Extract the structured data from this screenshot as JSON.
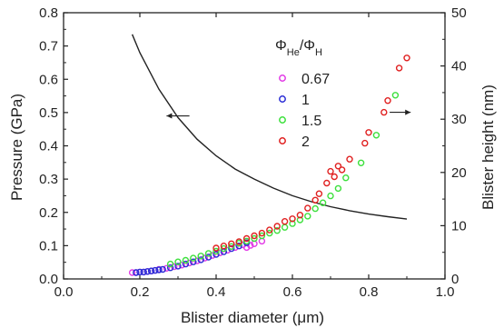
{
  "chart_data": {
    "type": "scatter",
    "xlabel": "Blister diameter (μm)",
    "ylabel": "Pressure (GPa)",
    "y2label": "Blister height (nm)",
    "xlim": [
      0.0,
      1.0
    ],
    "ylim": [
      0.0,
      0.8
    ],
    "y2lim": [
      0,
      50
    ],
    "xticks": [
      "0.0",
      "0.2",
      "0.4",
      "0.6",
      "0.8",
      "1.0"
    ],
    "yticks": [
      "0.0",
      "0.1",
      "0.2",
      "0.3",
      "0.4",
      "0.5",
      "0.6",
      "0.7",
      "0.8"
    ],
    "y2ticks": [
      "0",
      "10",
      "20",
      "30",
      "40",
      "50"
    ],
    "grid": false,
    "legend": {
      "title_main": "Φ",
      "title_sub1": "He",
      "title_sep": "/Φ",
      "title_sub2": "H",
      "placement": "top-right",
      "entries": [
        "0.67",
        "1",
        "1.5",
        "2"
      ]
    },
    "pressure_curve": {
      "axis": "left",
      "x": [
        0.18,
        0.2,
        0.25,
        0.3,
        0.35,
        0.4,
        0.45,
        0.5,
        0.55,
        0.6,
        0.65,
        0.7,
        0.75,
        0.8,
        0.85,
        0.9
      ],
      "y": [
        0.735,
        0.68,
        0.57,
        0.485,
        0.42,
        0.37,
        0.33,
        0.3,
        0.273,
        0.25,
        0.232,
        0.217,
        0.205,
        0.195,
        0.187,
        0.18
      ]
    },
    "series": [
      {
        "name": "0.67",
        "color": "#e23be6",
        "axis": "right",
        "x": [
          0.18,
          0.19,
          0.2,
          0.21,
          0.22,
          0.23,
          0.24,
          0.25,
          0.27,
          0.29,
          0.31,
          0.33,
          0.35,
          0.37,
          0.39,
          0.41,
          0.43,
          0.45,
          0.47,
          0.48,
          0.49,
          0.5,
          0.52
        ],
        "y": [
          1.2,
          1.2,
          1.3,
          1.3,
          1.4,
          1.5,
          1.6,
          1.8,
          2.0,
          2.3,
          2.6,
          3.0,
          3.4,
          3.9,
          4.4,
          4.9,
          5.4,
          5.9,
          6.4,
          5.9,
          6.3,
          6.6,
          7.1
        ]
      },
      {
        "name": "1",
        "color": "#2b2ed6",
        "axis": "right",
        "x": [
          0.19,
          0.2,
          0.21,
          0.22,
          0.23,
          0.24,
          0.25,
          0.26,
          0.28,
          0.3,
          0.32,
          0.34,
          0.36,
          0.38,
          0.4,
          0.42,
          0.44,
          0.46,
          0.48
        ],
        "y": [
          1.2,
          1.3,
          1.3,
          1.4,
          1.5,
          1.6,
          1.7,
          1.8,
          2.1,
          2.4,
          2.8,
          3.2,
          3.6,
          4.1,
          4.6,
          5.1,
          5.7,
          6.2,
          6.8
        ]
      },
      {
        "name": "1.5",
        "color": "#3ce03c",
        "axis": "right",
        "x": [
          0.28,
          0.3,
          0.32,
          0.34,
          0.36,
          0.38,
          0.4,
          0.42,
          0.44,
          0.46,
          0.48,
          0.5,
          0.52,
          0.54,
          0.56,
          0.58,
          0.6,
          0.62,
          0.64,
          0.66,
          0.68,
          0.7,
          0.72,
          0.74,
          0.78,
          0.82,
          0.87
        ],
        "y": [
          2.8,
          3.2,
          3.5,
          3.9,
          4.3,
          4.8,
          5.2,
          5.7,
          6.1,
          6.7,
          7.1,
          7.6,
          8.1,
          8.6,
          9.1,
          9.7,
          10.4,
          11.1,
          11.8,
          13.2,
          14.3,
          15.6,
          17.0,
          19.0,
          21.8,
          27.0,
          34.5
        ]
      },
      {
        "name": "2",
        "color": "#e02020",
        "axis": "right",
        "x": [
          0.4,
          0.42,
          0.44,
          0.46,
          0.48,
          0.5,
          0.52,
          0.54,
          0.56,
          0.58,
          0.6,
          0.62,
          0.64,
          0.66,
          0.67,
          0.69,
          0.7,
          0.71,
          0.72,
          0.73,
          0.75,
          0.79,
          0.8,
          0.84,
          0.85,
          0.88,
          0.9
        ],
        "y": [
          5.8,
          6.2,
          6.6,
          7.0,
          7.6,
          8.1,
          8.6,
          9.2,
          9.9,
          10.8,
          11.3,
          12.0,
          13.3,
          14.8,
          16.0,
          18.0,
          20.2,
          19.2,
          21.2,
          20.5,
          22.5,
          25.5,
          27.5,
          31.3,
          33.5,
          39.6,
          41.5
        ]
      }
    ]
  }
}
